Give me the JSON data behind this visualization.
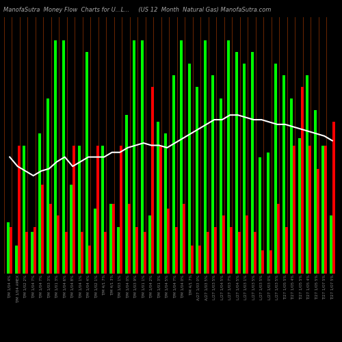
{
  "title": "ManofaSutra  Money Flow  Charts for U...L...     (US 12  Month  Natural Gas) ManofaSutra.com",
  "background_color": "#000000",
  "categories": [
    "T/M 1/04 4%",
    "T/M 1/04 AMEX",
    "T/M 1/02 2%",
    "T/M 1/04 7%",
    "T/M 1/04 7%",
    "T/M 1/03 3%",
    "T/M 1/01 3%",
    "T/M 1/04 6%",
    "T/M 1/04 8%",
    "T/M 1/04 1%",
    "T/M 1/04 4%",
    "T/M 1/02 1%",
    "T/M 4/1 7%",
    "T/M 4/1 3%",
    "T/M 1/03 1%",
    "T/M 1/04 0%",
    "T/M 1/03 9%",
    "T/M 1/01 1%",
    "T/M 1/04 2%",
    "T/M 1/01 3%",
    "T/M 1/04 5%",
    "T/M 1/04 7%",
    "T/M 1/04 0%",
    "T/M 4/1 7%",
    "A/27 1/03 0%",
    "A/27 1/03 5%",
    "L/27 1/03 5%",
    "L/27 1/04 5%",
    "L/27 1/03 7%",
    "L/27 1/04 5%",
    "L/27 1/03 1%",
    "L/27 1/03 5%",
    "L/27 1/03 5%",
    "L/27 1/03 0%",
    "L/27 1/03 5%",
    "T/27 1/05 5%",
    "T/27 1/05 4%",
    "T/27 1/05 5%",
    "T/27 1/05 4%",
    "T/27 1/05 5%",
    "T/27 1/07 5%",
    "T/27 1/07 5%"
  ],
  "green_bars": [
    22,
    12,
    55,
    18,
    60,
    75,
    100,
    100,
    38,
    55,
    95,
    28,
    55,
    30,
    20,
    68,
    100,
    100,
    25,
    65,
    60,
    85,
    100,
    90,
    80,
    100,
    85,
    75,
    100,
    95,
    90,
    95,
    50,
    52,
    90,
    85,
    75,
    58,
    85,
    70,
    55,
    25
  ],
  "red_bars": [
    20,
    55,
    18,
    20,
    38,
    30,
    25,
    18,
    55,
    18,
    12,
    55,
    18,
    30,
    55,
    30,
    20,
    18,
    80,
    55,
    28,
    20,
    30,
    12,
    12,
    18,
    20,
    25,
    20,
    18,
    25,
    18,
    10,
    10,
    30,
    20,
    55,
    80,
    55,
    45,
    55,
    65
  ],
  "line_values": [
    50,
    46,
    44,
    42,
    44,
    45,
    48,
    50,
    46,
    48,
    50,
    50,
    50,
    52,
    52,
    54,
    55,
    56,
    55,
    55,
    54,
    56,
    58,
    60,
    62,
    64,
    66,
    66,
    68,
    68,
    67,
    66,
    66,
    65,
    64,
    64,
    63,
    62,
    61,
    60,
    59,
    57
  ],
  "line_color": "#ffffff",
  "positive_color": "#00ff00",
  "negative_color": "#ff0000",
  "title_color": "#aaaaaa",
  "tick_color": "#888888",
  "title_fontsize": 6,
  "tick_fontsize": 4,
  "separator_color": "#8B3000",
  "ylim": [
    0,
    110
  ]
}
